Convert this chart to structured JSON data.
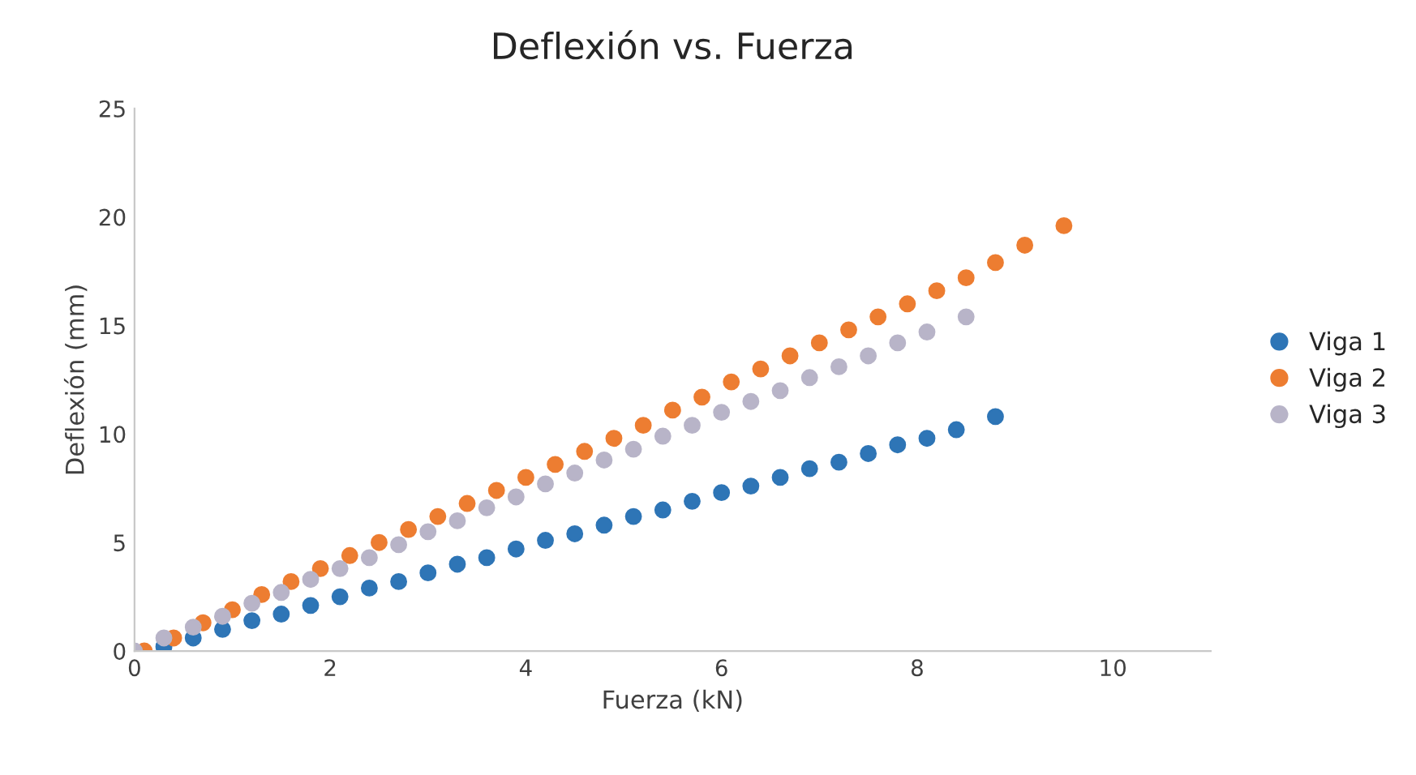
{
  "chart_data": {
    "type": "scatter",
    "title": "Deflexión vs. Fuerza",
    "xlabel": "Fuerza (kN)",
    "ylabel": "Deflexión (mm)",
    "xlim": [
      0,
      11
    ],
    "xticks": [
      0,
      2,
      4,
      6,
      8,
      10
    ],
    "ylim": [
      0,
      25
    ],
    "yticks": [
      0,
      5,
      10,
      15,
      20,
      25
    ],
    "grid": false,
    "legend": "right",
    "marker": "circle",
    "series": [
      {
        "name": "Viga 1",
        "color": "#2e75b6",
        "x": [
          0.3,
          0.6,
          0.9,
          1.2,
          1.5,
          1.8,
          2.1,
          2.4,
          2.7,
          3.0,
          3.3,
          3.6,
          3.9,
          4.2,
          4.5,
          4.8,
          5.1,
          5.4,
          5.7,
          6.0,
          6.3,
          6.6,
          6.9,
          7.2,
          7.5,
          7.8,
          8.1,
          8.4,
          8.8
        ],
        "values": [
          0.2,
          0.6,
          1.0,
          1.4,
          1.7,
          2.1,
          2.5,
          2.9,
          3.2,
          3.6,
          4.0,
          4.3,
          4.7,
          5.1,
          5.4,
          5.8,
          6.2,
          6.5,
          6.9,
          7.3,
          7.6,
          8.0,
          8.4,
          8.7,
          9.1,
          9.5,
          9.8,
          10.2,
          10.8
        ]
      },
      {
        "name": "Viga 2",
        "color": "#ed7d31",
        "x": [
          0.1,
          0.4,
          0.7,
          1.0,
          1.3,
          1.6,
          1.9,
          2.2,
          2.5,
          2.8,
          3.1,
          3.4,
          3.7,
          4.0,
          4.3,
          4.6,
          4.9,
          5.2,
          5.5,
          5.8,
          6.1,
          6.4,
          6.7,
          7.0,
          7.3,
          7.6,
          7.9,
          8.2,
          8.5,
          8.8,
          9.1,
          9.5
        ],
        "values": [
          0,
          0.6,
          1.3,
          1.9,
          2.6,
          3.2,
          3.8,
          4.4,
          5.0,
          5.6,
          6.2,
          6.8,
          7.4,
          8.0,
          8.6,
          9.2,
          9.8,
          10.4,
          11.1,
          11.7,
          12.4,
          13.0,
          13.6,
          14.2,
          14.8,
          15.4,
          16.0,
          16.6,
          17.2,
          17.9,
          18.7,
          19.6
        ]
      },
      {
        "name": "Viga 3",
        "color": "#b8b4c8",
        "x": [
          0,
          0.3,
          0.6,
          0.9,
          1.2,
          1.5,
          1.8,
          2.1,
          2.4,
          2.7,
          3.0,
          3.3,
          3.6,
          3.9,
          4.2,
          4.5,
          4.8,
          5.1,
          5.4,
          5.7,
          6.0,
          6.3,
          6.6,
          6.9,
          7.2,
          7.5,
          7.8,
          8.1,
          8.5
        ],
        "values": [
          0,
          0.6,
          1.1,
          1.6,
          2.2,
          2.7,
          3.3,
          3.8,
          4.3,
          4.9,
          5.5,
          6.0,
          6.6,
          7.1,
          7.7,
          8.2,
          8.8,
          9.3,
          9.9,
          10.4,
          11.0,
          11.5,
          12.0,
          12.6,
          13.1,
          13.6,
          14.2,
          14.7,
          15.4
        ]
      }
    ]
  }
}
